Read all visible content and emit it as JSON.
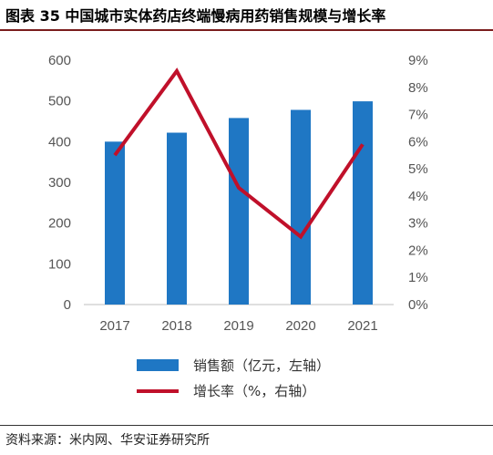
{
  "title": "图表 35 中国城市实体药店终端慢病用药销售规模与增长率",
  "source": "资料来源：米内网、华安证券研究所",
  "legend": {
    "bar_label": "销售额（亿元，左轴）",
    "line_label": "增长率（%，右轴）"
  },
  "colors": {
    "bar": "#1f77c4",
    "line": "#c0102a"
  },
  "chart_data": {
    "type": "bar",
    "categories": [
      "2017",
      "2018",
      "2019",
      "2020",
      "2021"
    ],
    "series": [
      {
        "name": "销售额（亿元，左轴）",
        "type": "bar",
        "axis": "left",
        "values": [
          400,
          422,
          458,
          478,
          499
        ]
      },
      {
        "name": "增长率（%，右轴）",
        "type": "line",
        "axis": "right",
        "values": [
          5.5,
          8.6,
          4.3,
          2.5,
          5.9
        ]
      }
    ],
    "ylim_left": [
      0,
      600
    ],
    "yticks_left": [
      "0",
      "100",
      "200",
      "300",
      "400",
      "500",
      "600"
    ],
    "ylim_right": [
      0,
      9
    ],
    "yticks_right": [
      "0%",
      "1%",
      "2%",
      "3%",
      "4%",
      "5%",
      "6%",
      "7%",
      "8%",
      "9%"
    ],
    "grid": false,
    "legend_position": "bottom"
  }
}
